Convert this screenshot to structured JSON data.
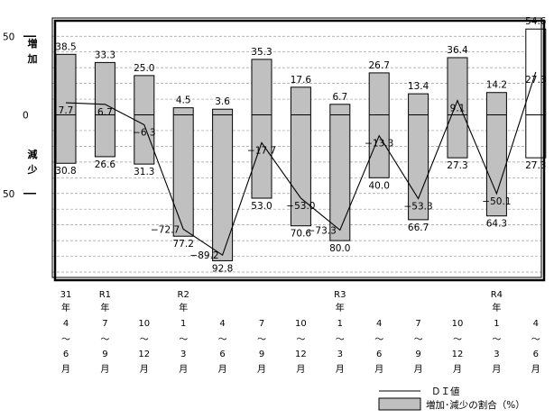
{
  "chart_data": {
    "type": "bar",
    "y_axis": {
      "top_label": "50",
      "zero_label": "0",
      "bottom_label": "50",
      "ylim": [
        -100,
        55
      ]
    },
    "side_labels": {
      "increase": [
        "増",
        "加"
      ],
      "decrease": [
        "減",
        "少"
      ]
    },
    "legend": {
      "line": "ＤＩ値",
      "bar": "増加･減少の割合（%）"
    },
    "categories": [
      {
        "lines": [
          "31",
          "年",
          "4",
          "〜",
          "6",
          "月"
        ]
      },
      {
        "lines": [
          "R1",
          "年",
          "7",
          "〜",
          "9",
          "月"
        ]
      },
      {
        "lines": [
          "",
          "",
          "10",
          "〜",
          "12",
          "月"
        ]
      },
      {
        "lines": [
          "R2",
          "年",
          "1",
          "〜",
          "3",
          "月"
        ]
      },
      {
        "lines": [
          "",
          "",
          "4",
          "〜",
          "6",
          "月"
        ]
      },
      {
        "lines": [
          "",
          "",
          "7",
          "〜",
          "9",
          "月"
        ]
      },
      {
        "lines": [
          "",
          "",
          "10",
          "〜",
          "12",
          "月"
        ]
      },
      {
        "lines": [
          "R3",
          "年",
          "1",
          "〜",
          "3",
          "月"
        ]
      },
      {
        "lines": [
          "",
          "",
          "4",
          "〜",
          "6",
          "月"
        ]
      },
      {
        "lines": [
          "",
          "",
          "7",
          "〜",
          "9",
          "月"
        ]
      },
      {
        "lines": [
          "",
          "",
          "10",
          "〜",
          "12",
          "月"
        ]
      },
      {
        "lines": [
          "R4",
          "年",
          "1",
          "〜",
          "3",
          "月"
        ]
      },
      {
        "lines": [
          "",
          "",
          "4",
          "〜",
          "6",
          "月"
        ]
      }
    ],
    "increase": [
      38.5,
      33.3,
      25.0,
      4.5,
      3.6,
      35.3,
      17.6,
      6.7,
      26.7,
      13.4,
      36.4,
      14.2,
      54.6
    ],
    "increase_labels": [
      "38.5",
      "33.3",
      "25.0",
      "4.5",
      "3.6",
      "35.3",
      "17.6",
      "6.7",
      "26.7",
      "13.4",
      "36.4",
      "14.2",
      "54.6"
    ],
    "decrease": [
      30.8,
      26.6,
      31.3,
      77.2,
      92.8,
      53.0,
      70.6,
      80.0,
      40.0,
      66.7,
      27.3,
      64.3,
      27.3
    ],
    "decrease_labels": [
      "30.8",
      "26.6",
      "31.3",
      "77.2",
      "92.8",
      "53.0",
      "70.6",
      "80.0",
      "40.0",
      "66.7",
      "27.3",
      "64.3",
      "27.3"
    ],
    "di": [
      7.7,
      6.7,
      -6.3,
      -72.7,
      -89.2,
      -17.7,
      -53.0,
      -73.3,
      -13.3,
      -53.3,
      9.1,
      -50.1,
      27.3
    ],
    "di_labels": [
      "7.7",
      "6.7",
      "-6.3",
      "-72.7",
      "-89.2",
      "-17.7",
      "-53.0",
      "-73.3",
      "-13.3",
      "-53.3",
      "9.1",
      "-50.1",
      "27.3"
    ],
    "forecast_index": 12,
    "colors": {
      "bar": "#c0c0c0",
      "forecast_bar": "#ffffff",
      "line": "#000000",
      "grid": "#9a9a9a"
    },
    "grid": "dashed"
  }
}
